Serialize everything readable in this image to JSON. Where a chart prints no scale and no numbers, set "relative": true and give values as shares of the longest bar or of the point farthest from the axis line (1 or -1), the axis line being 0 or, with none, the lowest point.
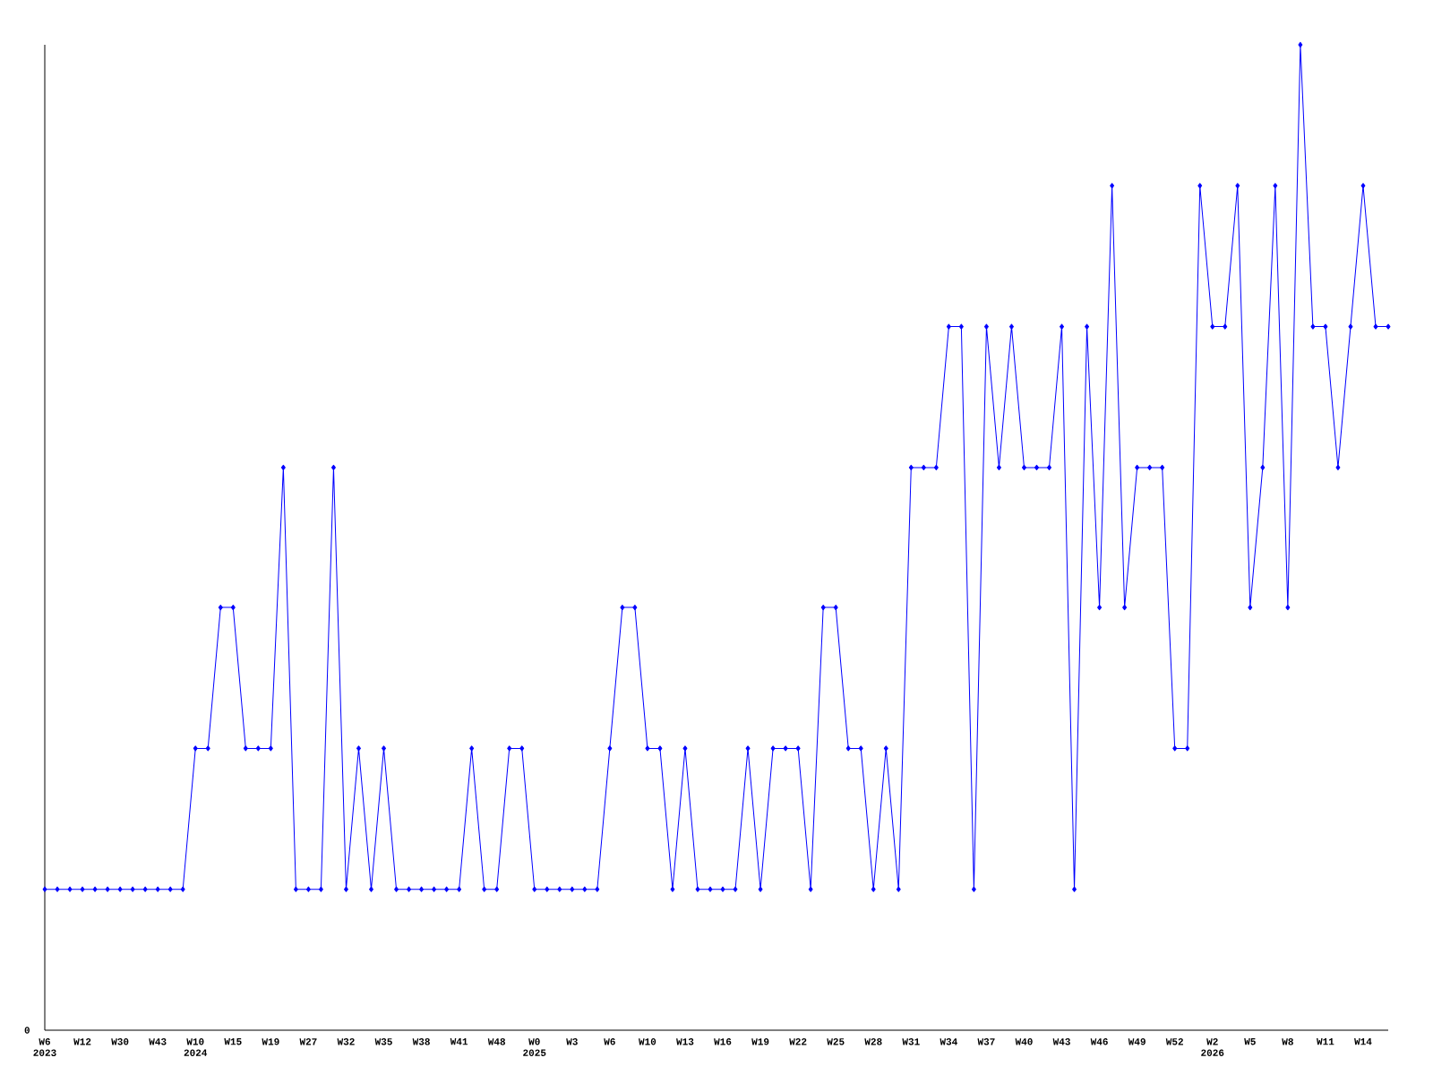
{
  "chart_data": {
    "type": "line",
    "relative": true,
    "marker": "diamond",
    "line_style": "solid",
    "annotations": [
      "0"
    ],
    "categories": [
      "W6 2023",
      null,
      null,
      "W12",
      null,
      null,
      "W30",
      null,
      null,
      "W43",
      null,
      null,
      "W10 2024",
      null,
      null,
      "W15",
      null,
      null,
      "W19",
      null,
      null,
      "W27",
      null,
      null,
      "W32",
      null,
      null,
      "W35",
      null,
      null,
      "W38",
      null,
      null,
      "W41",
      null,
      null,
      "W48",
      null,
      null,
      "W0 2025",
      null,
      null,
      "W3",
      null,
      null,
      "W6",
      null,
      null,
      "W10",
      null,
      null,
      "W13",
      null,
      null,
      "W16",
      null,
      null,
      "W19",
      null,
      null,
      "W22",
      null,
      null,
      "W25",
      null,
      null,
      "W28",
      null,
      null,
      "W31",
      null,
      null,
      "W34",
      null,
      null,
      "W37",
      null,
      null,
      "W40",
      null,
      null,
      "W43",
      null,
      null,
      "W46",
      null,
      null,
      "W49",
      null,
      null,
      "W52",
      null,
      null,
      "W2 2026",
      null,
      null,
      "W5",
      null,
      null,
      "W8",
      null,
      null,
      "W11",
      null,
      null,
      "W14",
      null,
      null
    ],
    "series": [
      {
        "color": "#0000ff",
        "values": [
          0.143,
          0.143,
          0.143,
          0.143,
          0.143,
          0.143,
          0.143,
          0.143,
          0.143,
          0.143,
          0.143,
          0.143,
          0.286,
          0.286,
          0.429,
          0.429,
          0.286,
          0.286,
          0.286,
          0.571,
          0.143,
          0.143,
          0.143,
          0.571,
          0.143,
          0.286,
          0.143,
          0.286,
          0.143,
          0.143,
          0.143,
          0.143,
          0.143,
          0.143,
          0.286,
          0.143,
          0.143,
          0.286,
          0.286,
          0.143,
          0.143,
          0.143,
          0.143,
          0.143,
          0.143,
          0.286,
          0.429,
          0.429,
          0.286,
          0.286,
          0.143,
          0.286,
          0.143,
          0.143,
          0.143,
          0.143,
          0.286,
          0.143,
          0.286,
          0.286,
          0.286,
          0.143,
          0.429,
          0.429,
          0.286,
          0.286,
          0.143,
          0.286,
          0.143,
          0.571,
          0.571,
          0.571,
          0.714,
          0.714,
          0.143,
          0.714,
          0.571,
          0.714,
          0.571,
          0.571,
          0.571,
          0.714,
          0.143,
          0.714,
          0.429,
          0.857,
          0.429,
          0.571,
          0.571,
          0.571,
          0.286,
          0.286,
          0.857,
          0.714,
          0.714,
          0.857,
          0.429,
          0.571,
          0.857,
          0.429,
          1,
          0.714,
          0.714,
          0.571,
          0.714,
          0.857,
          0.714,
          0.714
        ]
      }
    ]
  }
}
